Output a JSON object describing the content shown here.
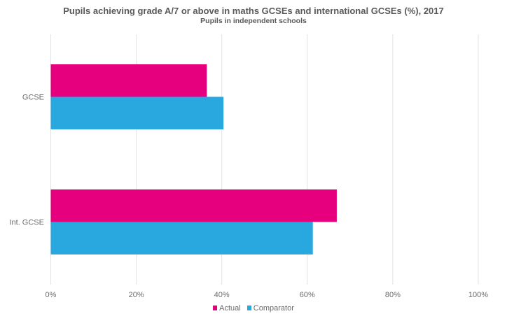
{
  "chart_data": {
    "type": "bar",
    "orientation": "horizontal",
    "title": "Pupils achieving grade A/7 or above in maths GCSEs and international GCSEs (%), 2017",
    "subtitle": "Pupils in independent schools",
    "categories": [
      "GCSE",
      "Int. GCSE"
    ],
    "series": [
      {
        "name": "Actual",
        "color": "#e6007e",
        "values": [
          36.5,
          66.9
        ]
      },
      {
        "name": "Comparator",
        "color": "#29a8e0",
        "values": [
          40.4,
          61.3
        ]
      }
    ],
    "xlim": [
      0,
      100
    ],
    "xticks": [
      "0%",
      "20%",
      "40%",
      "60%",
      "80%",
      "100%"
    ],
    "xtick_values": [
      0,
      20,
      40,
      60,
      80,
      100
    ],
    "grid": true,
    "legend": "bottom"
  }
}
